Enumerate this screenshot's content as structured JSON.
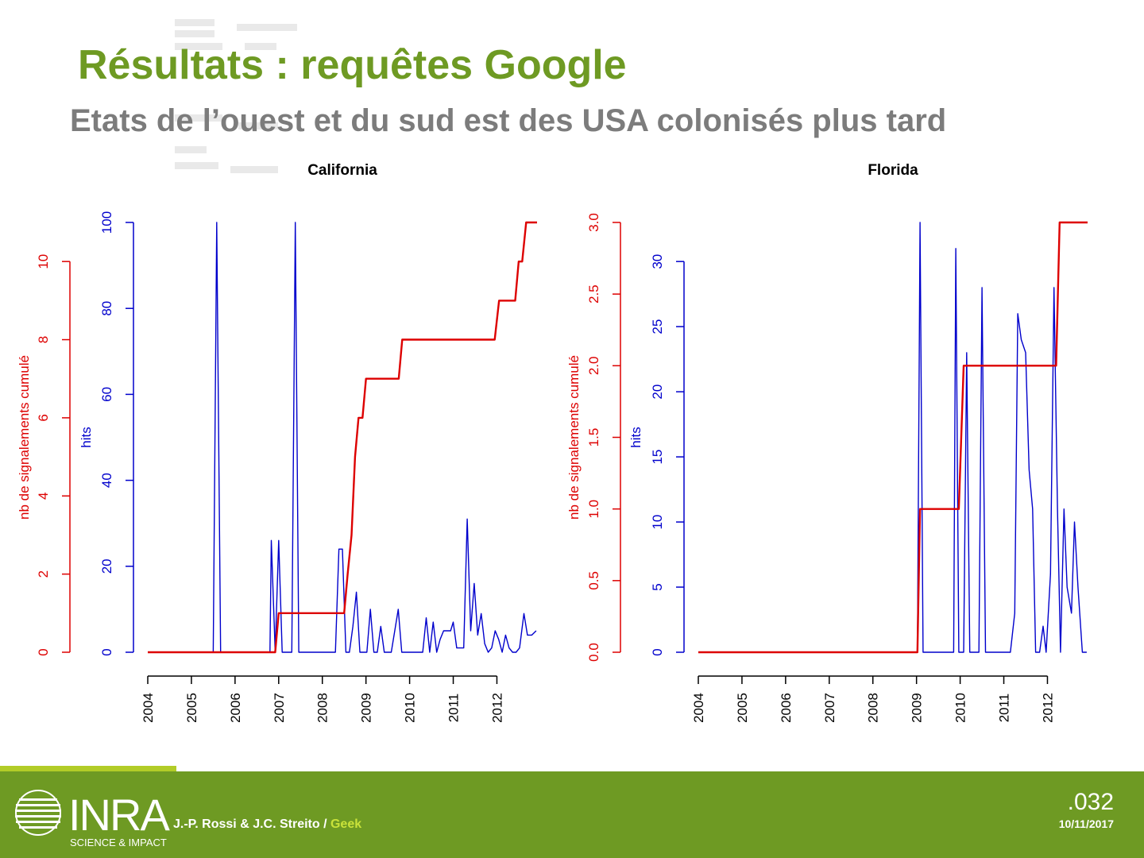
{
  "slide": {
    "title": "Résultats : requêtes Google",
    "subtitle": "Etats de l’ouest et du sud est des USA colonisés plus tard"
  },
  "footer": {
    "logo_text": "INRA",
    "logo_tagline": "SCIENCE & IMPACT",
    "authors": "J.-P. Rossi & J.C. Streito / ",
    "author_tag": "Geek",
    "slide_number": ".032",
    "date": "10/11/2017"
  },
  "colors": {
    "title_green": "#6e9a23",
    "subtitle_gray": "#7c7c7c",
    "hits_blue": "#0000cc",
    "cumul_red": "#dd0000",
    "footer_green": "#6e9a23",
    "footer_accent": "#b2cc28"
  },
  "chart_data": [
    {
      "type": "line",
      "title": "California",
      "x_ticks": [
        2004,
        2005,
        2006,
        2007,
        2008,
        2009,
        2010,
        2011,
        2012
      ],
      "xlim": [
        2004.0,
        2012.92
      ],
      "y_left": {
        "label": "nb de signalements cumulé",
        "ticks": [
          0,
          2,
          4,
          6,
          8,
          10
        ],
        "ylim": [
          0,
          11
        ]
      },
      "y_right": {
        "label": "hits",
        "ticks": [
          0,
          20,
          40,
          60,
          80,
          100
        ],
        "ylim": [
          0,
          100
        ]
      },
      "series": [
        {
          "name": "hits",
          "axis": "right",
          "color": "#0000cc",
          "points": [
            [
              2004.0,
              0
            ],
            [
              2005.5,
              0
            ],
            [
              2005.58,
              100
            ],
            [
              2005.67,
              0
            ],
            [
              2006.8,
              0
            ],
            [
              2006.83,
              26
            ],
            [
              2006.92,
              0
            ],
            [
              2007.0,
              26
            ],
            [
              2007.08,
              0
            ],
            [
              2007.3,
              0
            ],
            [
              2007.38,
              100
            ],
            [
              2007.46,
              0
            ],
            [
              2007.5,
              0
            ],
            [
              2008.3,
              0
            ],
            [
              2008.38,
              24
            ],
            [
              2008.46,
              24
            ],
            [
              2008.54,
              0
            ],
            [
              2008.62,
              0
            ],
            [
              2008.7,
              6
            ],
            [
              2008.78,
              14
            ],
            [
              2008.86,
              0
            ],
            [
              2008.94,
              0
            ],
            [
              2009.02,
              0
            ],
            [
              2009.1,
              10
            ],
            [
              2009.18,
              0
            ],
            [
              2009.26,
              0
            ],
            [
              2009.34,
              6
            ],
            [
              2009.42,
              0
            ],
            [
              2009.5,
              0
            ],
            [
              2009.58,
              0
            ],
            [
              2009.66,
              5
            ],
            [
              2009.74,
              10
            ],
            [
              2009.82,
              0
            ],
            [
              2009.9,
              0
            ],
            [
              2010.0,
              0
            ],
            [
              2010.2,
              0
            ],
            [
              2010.3,
              0
            ],
            [
              2010.38,
              8
            ],
            [
              2010.46,
              0
            ],
            [
              2010.54,
              7
            ],
            [
              2010.62,
              0
            ],
            [
              2010.7,
              3
            ],
            [
              2010.78,
              5
            ],
            [
              2010.86,
              5
            ],
            [
              2010.94,
              5
            ],
            [
              2011.0,
              7
            ],
            [
              2011.08,
              1
            ],
            [
              2011.16,
              1
            ],
            [
              2011.24,
              1
            ],
            [
              2011.32,
              31
            ],
            [
              2011.4,
              5
            ],
            [
              2011.48,
              16
            ],
            [
              2011.56,
              4
            ],
            [
              2011.64,
              9
            ],
            [
              2011.72,
              2
            ],
            [
              2011.8,
              0
            ],
            [
              2011.88,
              1
            ],
            [
              2011.96,
              5
            ],
            [
              2012.04,
              3
            ],
            [
              2012.12,
              0
            ],
            [
              2012.2,
              4
            ],
            [
              2012.28,
              1
            ],
            [
              2012.36,
              0
            ],
            [
              2012.44,
              0
            ],
            [
              2012.52,
              1
            ],
            [
              2012.62,
              9
            ],
            [
              2012.7,
              4
            ],
            [
              2012.8,
              4
            ],
            [
              2012.9,
              5
            ]
          ]
        },
        {
          "name": "nb de signalements cumulé",
          "axis": "left",
          "color": "#dd0000",
          "points": [
            [
              2004.0,
              0
            ],
            [
              2006.92,
              0
            ],
            [
              2007.0,
              1
            ],
            [
              2008.5,
              1
            ],
            [
              2008.58,
              2
            ],
            [
              2008.67,
              3
            ],
            [
              2008.75,
              5
            ],
            [
              2008.83,
              6
            ],
            [
              2008.92,
              6
            ],
            [
              2009.0,
              7
            ],
            [
              2009.75,
              7
            ],
            [
              2009.83,
              8
            ],
            [
              2011.95,
              8
            ],
            [
              2012.05,
              9
            ],
            [
              2012.42,
              9
            ],
            [
              2012.5,
              10
            ],
            [
              2012.58,
              10
            ],
            [
              2012.67,
              11
            ],
            [
              2012.92,
              11
            ]
          ]
        }
      ]
    },
    {
      "type": "line",
      "title": "Florida",
      "x_ticks": [
        2004,
        2005,
        2006,
        2007,
        2008,
        2009,
        2010,
        2011,
        2012
      ],
      "xlim": [
        2004.0,
        2012.92
      ],
      "y_left": {
        "label": "nb de signalements cumulé",
        "ticks": [
          0.0,
          0.5,
          1.0,
          1.5,
          2.0,
          2.5,
          3.0
        ],
        "tick_labels": [
          "0.0",
          "0.5",
          "1.0",
          "1.5",
          "2.0",
          "2.5",
          "3.0"
        ],
        "ylim": [
          0,
          3
        ]
      },
      "y_right": {
        "label": "hits",
        "ticks": [
          0,
          5,
          10,
          15,
          20,
          25,
          30
        ],
        "ylim": [
          0,
          33
        ]
      },
      "series": [
        {
          "name": "hits",
          "axis": "right",
          "color": "#0000cc",
          "points": [
            [
              2004.0,
              0
            ],
            [
              2009.02,
              0
            ],
            [
              2009.08,
              33
            ],
            [
              2009.15,
              0
            ],
            [
              2009.5,
              0
            ],
            [
              2009.85,
              0
            ],
            [
              2009.9,
              31
            ],
            [
              2009.97,
              0
            ],
            [
              2010.08,
              0
            ],
            [
              2010.15,
              23
            ],
            [
              2010.22,
              0
            ],
            [
              2010.35,
              0
            ],
            [
              2010.43,
              0
            ],
            [
              2010.5,
              28
            ],
            [
              2010.58,
              0
            ],
            [
              2011.0,
              0
            ],
            [
              2011.15,
              0
            ],
            [
              2011.25,
              3
            ],
            [
              2011.32,
              26
            ],
            [
              2011.4,
              24
            ],
            [
              2011.5,
              23
            ],
            [
              2011.58,
              14
            ],
            [
              2011.66,
              11
            ],
            [
              2011.73,
              0
            ],
            [
              2011.82,
              0
            ],
            [
              2011.9,
              2
            ],
            [
              2011.97,
              0
            ],
            [
              2012.07,
              6
            ],
            [
              2012.15,
              28
            ],
            [
              2012.23,
              11
            ],
            [
              2012.3,
              0
            ],
            [
              2012.38,
              11
            ],
            [
              2012.45,
              5
            ],
            [
              2012.55,
              3
            ],
            [
              2012.62,
              10
            ],
            [
              2012.7,
              5
            ],
            [
              2012.8,
              0
            ],
            [
              2012.9,
              0
            ]
          ]
        },
        {
          "name": "nb de signalements cumulé",
          "axis": "left",
          "color": "#dd0000",
          "points": [
            [
              2004.0,
              0
            ],
            [
              2009.02,
              0
            ],
            [
              2009.08,
              1
            ],
            [
              2009.97,
              1
            ],
            [
              2010.08,
              2
            ],
            [
              2012.2,
              2
            ],
            [
              2012.28,
              3
            ],
            [
              2012.92,
              3
            ]
          ]
        }
      ]
    }
  ]
}
